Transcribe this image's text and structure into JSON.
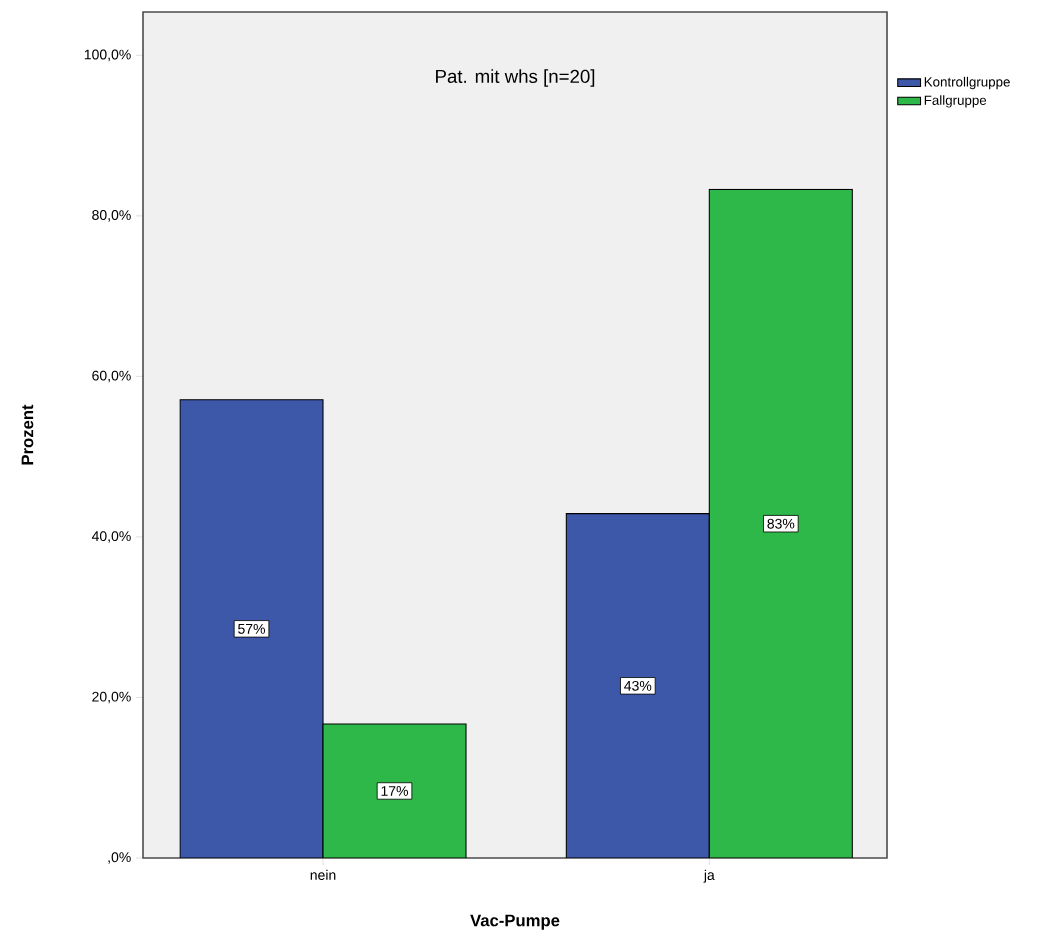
{
  "chart_data": {
    "type": "bar",
    "title": "Pat. mit whs [n=20]",
    "xlabel": "Vac-Pumpe",
    "ylabel": "Prozent",
    "categories": [
      "nein",
      "ja"
    ],
    "series": [
      {
        "name": "Kontrollgruppe",
        "color": "#3d58a9",
        "values": [
          57.1,
          42.9
        ],
        "value_labels": [
          "57%",
          "43%"
        ]
      },
      {
        "name": "Fallgruppe",
        "color": "#2fb84a",
        "values": [
          16.7,
          83.3
        ],
        "value_labels": [
          "17%",
          "83%"
        ]
      }
    ],
    "ylim": [
      0,
      105.4
    ],
    "yticks": [
      {
        "value": 0,
        "label": ",0%"
      },
      {
        "value": 20,
        "label": "20,0%"
      },
      {
        "value": 40,
        "label": "40,0%"
      },
      {
        "value": 60,
        "label": "60,0%"
      },
      {
        "value": 80,
        "label": "80,0%"
      },
      {
        "value": 100,
        "label": "100,0%"
      }
    ],
    "legend": "top right"
  }
}
